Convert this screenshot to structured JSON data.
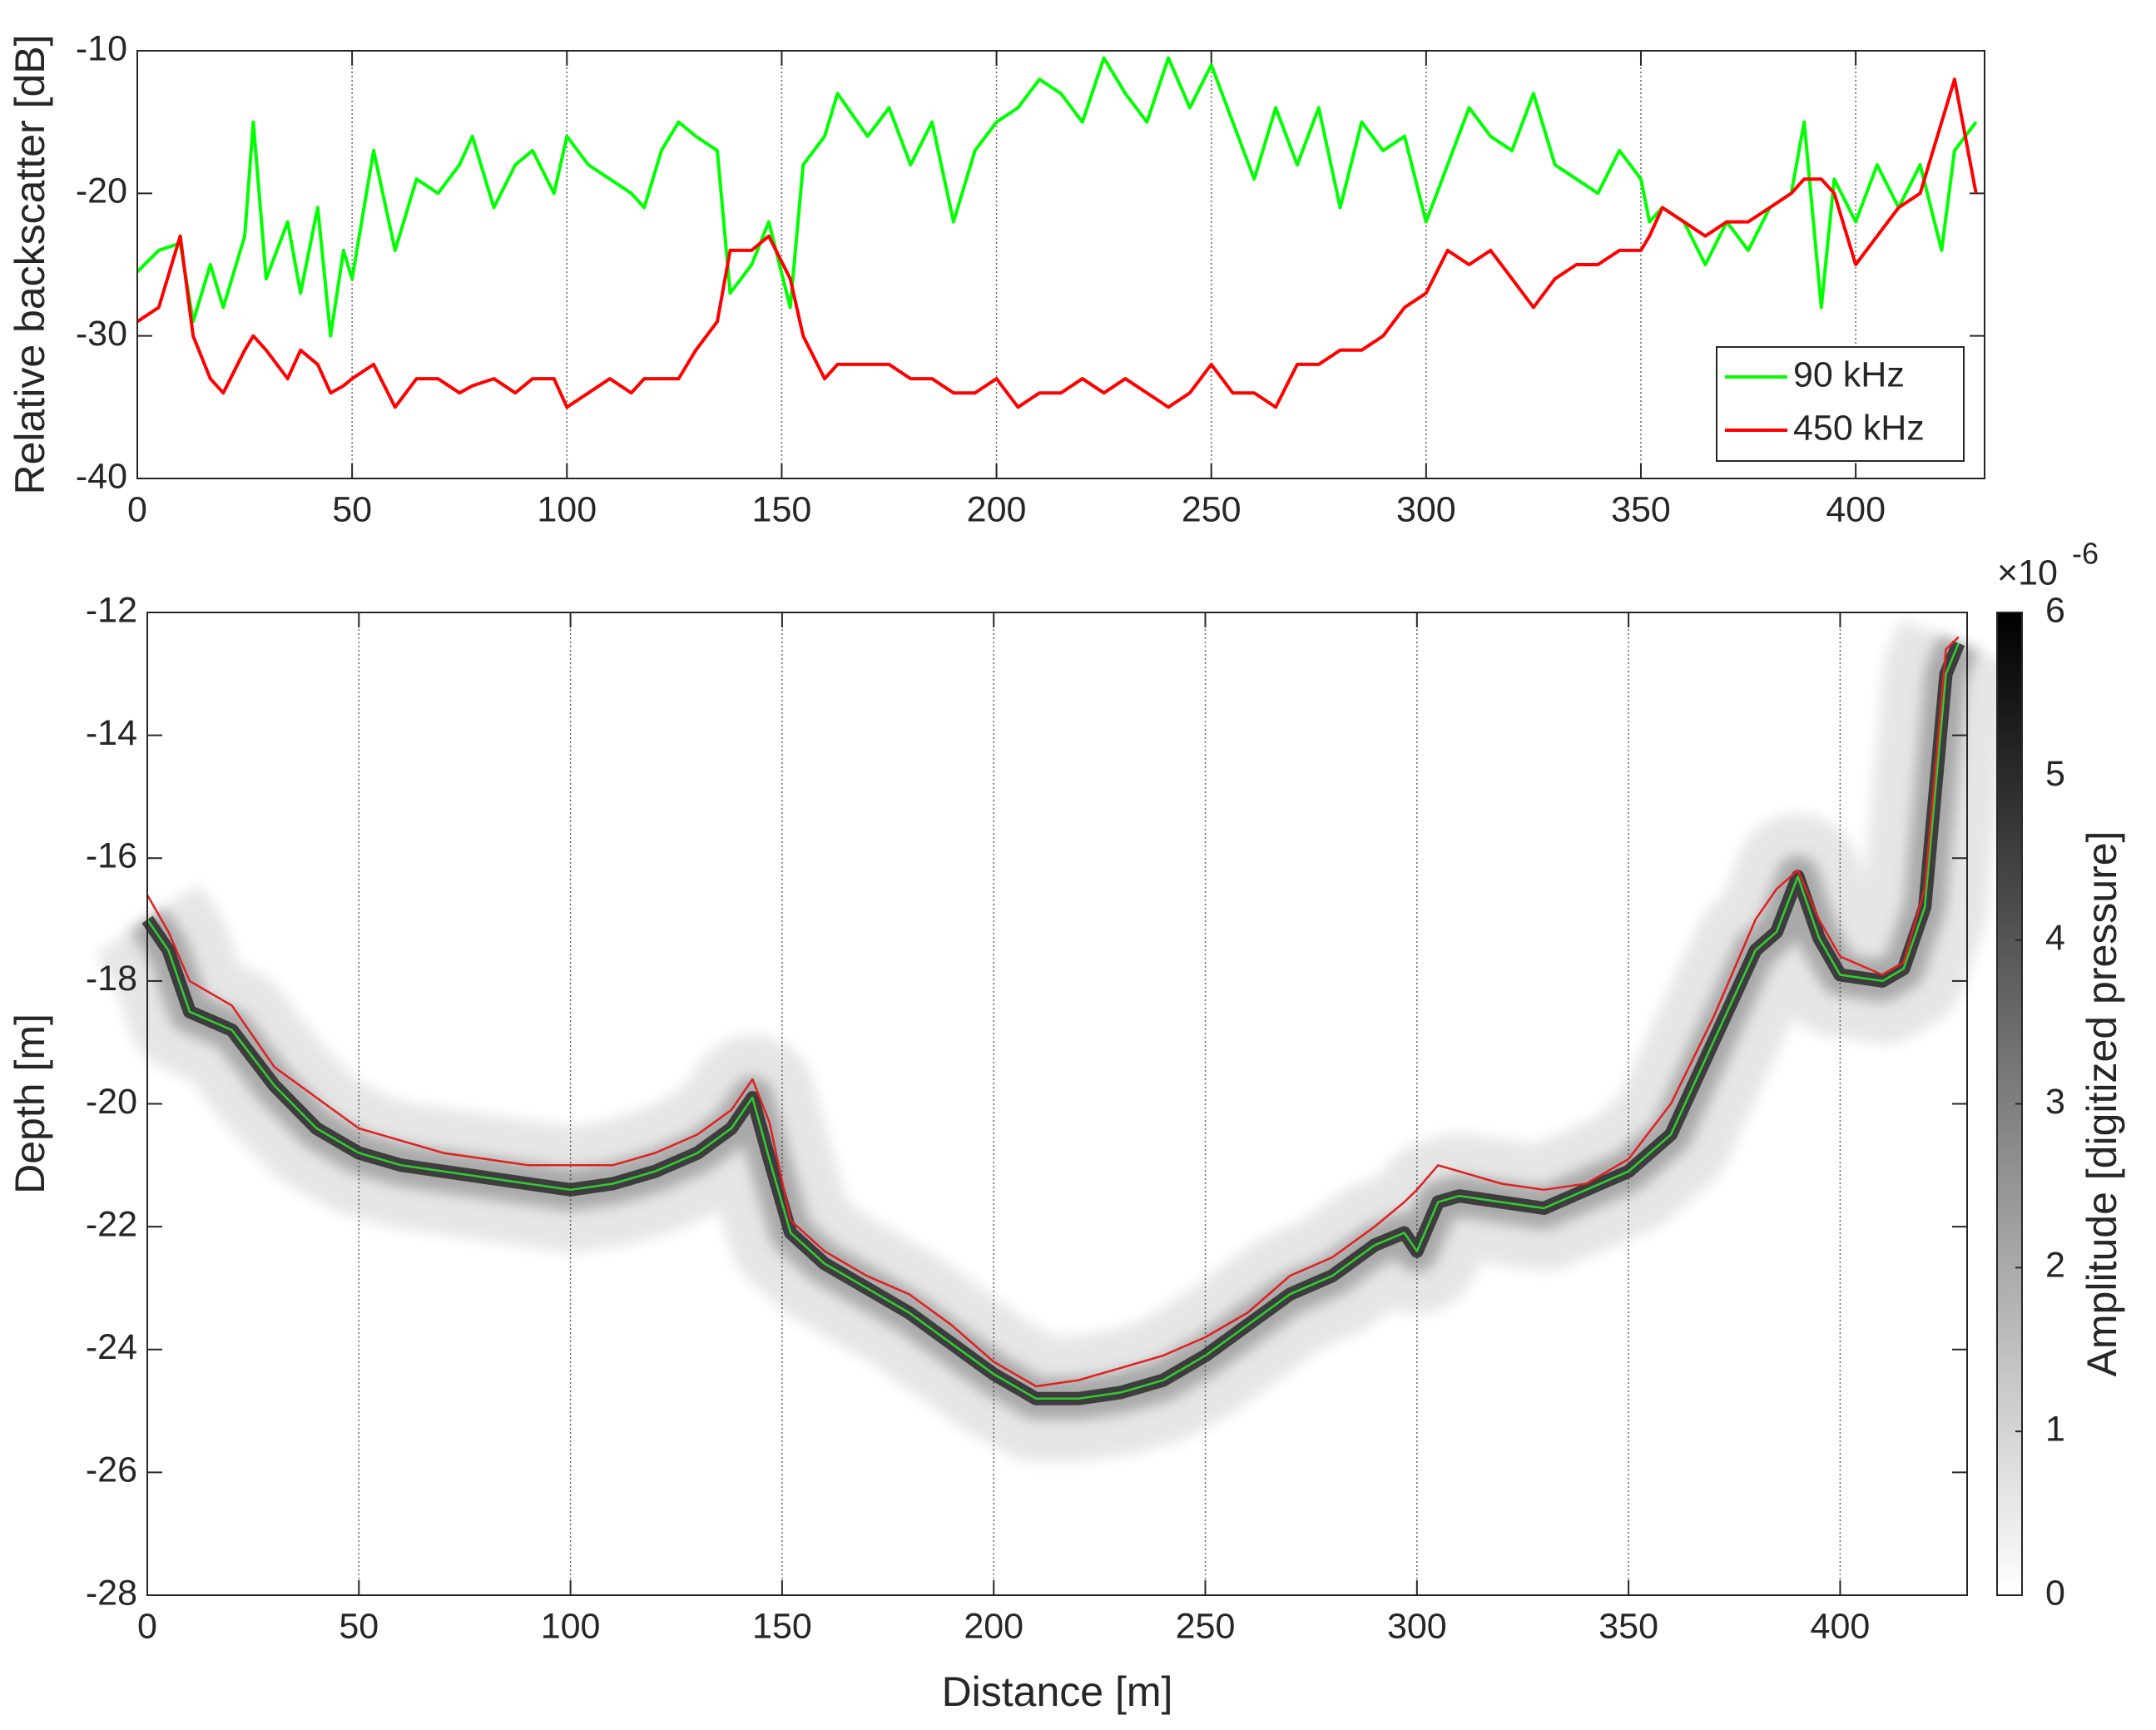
{
  "chart_data": [
    {
      "type": "line",
      "ylabel": "Relative backscatter [dB]",
      "x": [
        0,
        5,
        10,
        13,
        17,
        20,
        25,
        27,
        30,
        35,
        38,
        42,
        45,
        48,
        50,
        55,
        60,
        65,
        70,
        75,
        78,
        83,
        88,
        92,
        97,
        100,
        105,
        110,
        115,
        118,
        122,
        126,
        130,
        135,
        138,
        143,
        147,
        152,
        155,
        160,
        163,
        170,
        175,
        180,
        185,
        190,
        195,
        200,
        205,
        210,
        215,
        220,
        225,
        230,
        235,
        240,
        245,
        250,
        255,
        260,
        265,
        270,
        275,
        280,
        285,
        290,
        295,
        300,
        305,
        310,
        315,
        320,
        325,
        330,
        335,
        340,
        345,
        350,
        352,
        355,
        360,
        365,
        370,
        375,
        380,
        385,
        388,
        392,
        395,
        400,
        405,
        410,
        415,
        420,
        423,
        428
      ],
      "series": [
        {
          "name": "90 kHz",
          "color": "#00ff00",
          "values": [
            -25.5,
            -24,
            -23.5,
            -29,
            -25,
            -28,
            -23,
            -15,
            -26,
            -22,
            -27,
            -21,
            -30,
            -24,
            -26,
            -17,
            -24,
            -19,
            -20,
            -18,
            -16,
            -21,
            -18,
            -17,
            -20,
            -16,
            -18,
            -19,
            -20,
            -21,
            -17,
            -15,
            -16,
            -17,
            -27,
            -25,
            -22,
            -28,
            -18,
            -16,
            -13,
            -16,
            -14,
            -18,
            -15,
            -22,
            -17,
            -15,
            -14,
            -12,
            -13,
            -15,
            -10.5,
            -13,
            -15,
            -10.5,
            -14,
            -11,
            -15,
            -19,
            -14,
            -18,
            -14,
            -21,
            -15,
            -17,
            -16,
            -22,
            -18,
            -14,
            -16,
            -17,
            -13,
            -18,
            -19,
            -20,
            -17,
            -19,
            -22,
            -21,
            -22,
            -25,
            -22,
            -24,
            -21,
            -20,
            -15,
            -28,
            -19,
            -22,
            -18,
            -21,
            -18,
            -24,
            -17,
            -15
          ]
        },
        {
          "name": "450 kHz",
          "color": "#ff0000",
          "values": [
            -29,
            -28,
            -23,
            -30,
            -33,
            -34,
            -31,
            -30,
            -31,
            -33,
            -31,
            -32,
            -34,
            -33.5,
            -33,
            -32,
            -35,
            -33,
            -33,
            -34,
            -33.5,
            -33,
            -34,
            -33,
            -33,
            -35,
            -34,
            -33,
            -34,
            -33,
            -33,
            -33,
            -31,
            -29,
            -24,
            -24,
            -23,
            -26,
            -30,
            -33,
            -32,
            -32,
            -32,
            -33,
            -33,
            -34,
            -34,
            -33,
            -35,
            -34,
            -34,
            -33,
            -34,
            -33,
            -34,
            -35,
            -34,
            -32,
            -34,
            -34,
            -35,
            -32,
            -32,
            -31,
            -31,
            -30,
            -28,
            -27,
            -24,
            -25,
            -24,
            -26,
            -28,
            -26,
            -25,
            -25,
            -24,
            -24,
            -23,
            -21,
            -22,
            -23,
            -22,
            -22,
            -21,
            -20,
            -19,
            -19,
            -20,
            -25,
            -23,
            -21,
            -20,
            -15,
            -12,
            -20
          ]
        }
      ],
      "xlim": [
        0,
        430
      ],
      "xticks": [
        0,
        50,
        100,
        150,
        200,
        250,
        300,
        350,
        400
      ],
      "ylim": [
        -40,
        -10
      ],
      "yticks": [
        -40,
        -30,
        -20,
        -10
      ],
      "grid": "x",
      "legend": "lower right"
    },
    {
      "type": "line",
      "xlabel": "Distance [m]",
      "ylabel": "Depth [m]",
      "x": [
        0,
        5,
        10,
        20,
        30,
        40,
        50,
        60,
        70,
        80,
        90,
        100,
        110,
        120,
        130,
        138,
        143,
        147,
        152,
        160,
        170,
        180,
        190,
        200,
        210,
        220,
        230,
        240,
        250,
        260,
        270,
        280,
        290,
        297,
        300,
        305,
        310,
        320,
        330,
        340,
        350,
        360,
        370,
        380,
        385,
        390,
        395,
        400,
        410,
        415,
        420,
        425,
        428
      ],
      "series": [
        {
          "name": "90 kHz",
          "color": "#33cc33",
          "values": [
            -17,
            -17.5,
            -18.5,
            -18.8,
            -19.7,
            -20.4,
            -20.8,
            -21,
            -21.1,
            -21.2,
            -21.3,
            -21.4,
            -21.3,
            -21.1,
            -20.8,
            -20.4,
            -19.9,
            -20.9,
            -22.1,
            -22.6,
            -23,
            -23.4,
            -23.9,
            -24.4,
            -24.8,
            -24.8,
            -24.7,
            -24.5,
            -24.1,
            -23.6,
            -23.1,
            -22.8,
            -22.3,
            -22.1,
            -22.4,
            -21.6,
            -21.5,
            -21.6,
            -21.7,
            -21.4,
            -21.1,
            -20.5,
            -19,
            -17.5,
            -17.2,
            -16.3,
            -17.3,
            -17.9,
            -18,
            -17.8,
            -16.8,
            -13,
            -12.5
          ]
        },
        {
          "name": "450 kHz",
          "color": "#e02020",
          "values": [
            -16.6,
            -17.2,
            -18,
            -18.4,
            -19.4,
            -19.9,
            -20.4,
            -20.6,
            -20.8,
            -20.9,
            -21,
            -21,
            -21,
            -20.8,
            -20.5,
            -20.1,
            -19.6,
            -20.3,
            -21.9,
            -22.4,
            -22.8,
            -23.1,
            -23.6,
            -24.2,
            -24.6,
            -24.5,
            -24.3,
            -24.1,
            -23.8,
            -23.4,
            -22.8,
            -22.5,
            -22,
            -21.6,
            -21.4,
            -21,
            -21.1,
            -21.3,
            -21.4,
            -21.3,
            -20.9,
            -20,
            -18.6,
            -17,
            -16.5,
            -16.2,
            -17,
            -17.6,
            -17.9,
            -17.7,
            -16.5,
            -12.6,
            -12.4
          ]
        }
      ],
      "xlim": [
        0,
        430
      ],
      "xticks": [
        0,
        50,
        100,
        150,
        200,
        250,
        300,
        350,
        400
      ],
      "ylim": [
        -28,
        -12
      ],
      "yticks": [
        -28,
        -26,
        -24,
        -22,
        -20,
        -18,
        -16,
        -14,
        -12
      ],
      "grid": "x",
      "colorbar": {
        "label": "Amplitude [digitized pressure]",
        "lim": [
          0,
          6
        ],
        "ticks": [
          0,
          1,
          2,
          3,
          4,
          5,
          6
        ],
        "multiplier": "×10",
        "exponent": "-6"
      }
    }
  ]
}
